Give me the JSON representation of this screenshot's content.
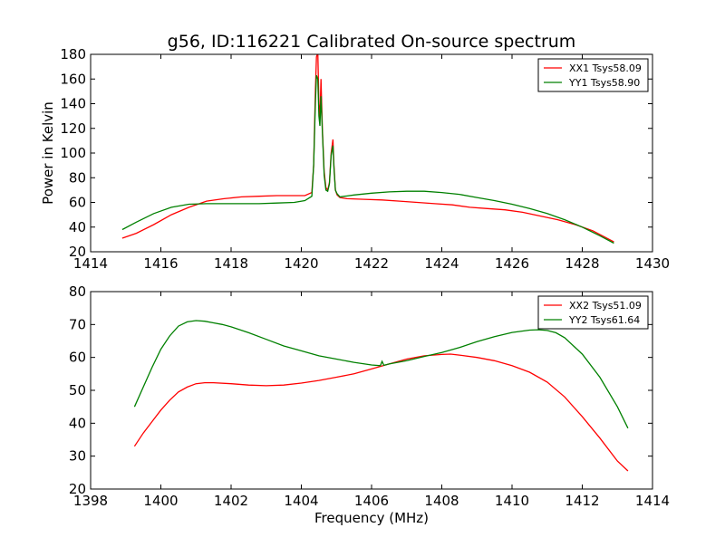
{
  "figure": {
    "title": "g56, ID:116221 Calibrated On-source spectrum",
    "ylabel": "Power in Kelvin",
    "xlabel": "Frequency (MHz)"
  },
  "chart_data": [
    {
      "type": "line",
      "title": "g56, ID:116221 Calibrated On-source spectrum",
      "xlabel": "",
      "ylabel": "Power in Kelvin",
      "xlim": [
        1414,
        1430
      ],
      "ylim": [
        20,
        180
      ],
      "xticks": [
        1414,
        1416,
        1418,
        1420,
        1422,
        1424,
        1426,
        1428,
        1430
      ],
      "yticks": [
        20,
        40,
        60,
        80,
        100,
        120,
        140,
        160,
        180
      ],
      "grid": false,
      "legend": "top-right",
      "series": [
        {
          "name": "XX1 Tsys58.09",
          "color": "#ff0000",
          "x": [
            1414.9,
            1415.3,
            1415.8,
            1416.3,
            1416.8,
            1417.3,
            1417.8,
            1418.3,
            1418.8,
            1419.3,
            1419.8,
            1420.1,
            1420.3,
            1420.35,
            1420.4,
            1420.43,
            1420.47,
            1420.5,
            1420.53,
            1420.56,
            1420.6,
            1420.65,
            1420.7,
            1420.75,
            1420.8,
            1420.85,
            1420.9,
            1420.93,
            1420.97,
            1421.02,
            1421.1,
            1421.3,
            1421.8,
            1422.3,
            1422.8,
            1423.3,
            1423.8,
            1424.3,
            1424.8,
            1425.3,
            1425.8,
            1426.3,
            1426.8,
            1427.3,
            1427.8,
            1428.3,
            1428.9
          ],
          "y": [
            31,
            35,
            42,
            50,
            56,
            61,
            63,
            64.5,
            65,
            65.5,
            65.5,
            65.5,
            68,
            90,
            150,
            178,
            181,
            140,
            128,
            160,
            120,
            85,
            72,
            70,
            76,
            100,
            111,
            90,
            70,
            66,
            64,
            63,
            62.5,
            62,
            61,
            60,
            59,
            58,
            56,
            55,
            54,
            52,
            49,
            46,
            42,
            37,
            28
          ]
        },
        {
          "name": "YY1 Tsys58.90",
          "color": "#008000",
          "x": [
            1414.9,
            1415.3,
            1415.8,
            1416.3,
            1416.8,
            1417.3,
            1417.8,
            1418.3,
            1418.8,
            1419.3,
            1419.8,
            1420.1,
            1420.3,
            1420.35,
            1420.4,
            1420.43,
            1420.47,
            1420.5,
            1420.53,
            1420.56,
            1420.6,
            1420.65,
            1420.7,
            1420.75,
            1420.8,
            1420.85,
            1420.9,
            1420.93,
            1420.97,
            1421.02,
            1421.1,
            1421.5,
            1422.0,
            1422.5,
            1423.0,
            1423.5,
            1424.0,
            1424.5,
            1425.0,
            1425.5,
            1426.0,
            1426.5,
            1427.0,
            1427.5,
            1428.0,
            1428.5,
            1428.9
          ],
          "y": [
            38,
            44,
            51,
            56,
            58.5,
            59,
            59,
            59,
            59,
            59.5,
            60,
            61.5,
            65,
            90,
            140,
            163,
            160,
            130,
            122,
            146,
            118,
            82,
            70,
            69,
            75,
            98,
            106,
            88,
            70,
            67,
            64.5,
            66,
            67.5,
            68.5,
            69,
            69,
            68,
            66.5,
            64,
            61.5,
            58.5,
            55,
            51,
            46,
            40,
            33,
            27
          ]
        }
      ]
    },
    {
      "type": "line",
      "title": "",
      "xlabel": "Frequency (MHz)",
      "ylabel": "",
      "xlim": [
        1398,
        1414
      ],
      "ylim": [
        20,
        80
      ],
      "xticks": [
        1398,
        1400,
        1402,
        1404,
        1406,
        1408,
        1410,
        1412,
        1414
      ],
      "yticks": [
        20,
        30,
        40,
        50,
        60,
        70,
        80
      ],
      "grid": false,
      "legend": "top-right",
      "series": [
        {
          "name": "XX2 Tsys51.09",
          "color": "#ff0000",
          "x": [
            1399.25,
            1399.5,
            1399.75,
            1400.0,
            1400.25,
            1400.5,
            1400.75,
            1401.0,
            1401.25,
            1401.5,
            1402.0,
            1402.5,
            1403.0,
            1403.5,
            1404.0,
            1404.5,
            1405.0,
            1405.5,
            1406.0,
            1406.5,
            1407.0,
            1407.5,
            1408.0,
            1408.25,
            1408.5,
            1409.0,
            1409.5,
            1410.0,
            1410.5,
            1411.0,
            1411.5,
            1412.0,
            1412.5,
            1413.0,
            1413.3
          ],
          "y": [
            33,
            37,
            40.5,
            44,
            47,
            49.5,
            51,
            52,
            52.3,
            52.3,
            52,
            51.6,
            51.4,
            51.6,
            52.2,
            53,
            54,
            55,
            56.5,
            58,
            59.5,
            60.5,
            60.9,
            61,
            60.7,
            60,
            59,
            57.5,
            55.5,
            52.5,
            48,
            42,
            35.5,
            28.5,
            25.5
          ]
        },
        {
          "name": "YY2 Tsys61.64",
          "color": "#008000",
          "x": [
            1399.25,
            1399.5,
            1399.75,
            1400.0,
            1400.25,
            1400.5,
            1400.75,
            1401.0,
            1401.25,
            1401.5,
            1401.75,
            1402.0,
            1402.5,
            1403.0,
            1403.5,
            1404.0,
            1404.5,
            1405.0,
            1405.5,
            1406.0,
            1406.25,
            1406.3,
            1406.35,
            1406.5,
            1407.0,
            1407.5,
            1408.0,
            1408.5,
            1409.0,
            1409.5,
            1410.0,
            1410.5,
            1410.75,
            1411.0,
            1411.25,
            1411.5,
            1412.0,
            1412.5,
            1413.0,
            1413.3
          ],
          "y": [
            45,
            51,
            57,
            62.5,
            66.5,
            69.5,
            70.8,
            71.2,
            71,
            70.5,
            70,
            69.3,
            67.5,
            65.5,
            63.5,
            62,
            60.5,
            59.5,
            58.5,
            57.7,
            57.5,
            58.8,
            57.6,
            58,
            59,
            60.3,
            61.5,
            63,
            64.8,
            66.3,
            67.6,
            68.3,
            68.4,
            68.2,
            67.5,
            66,
            61,
            54,
            45,
            38.5
          ]
        }
      ]
    }
  ]
}
